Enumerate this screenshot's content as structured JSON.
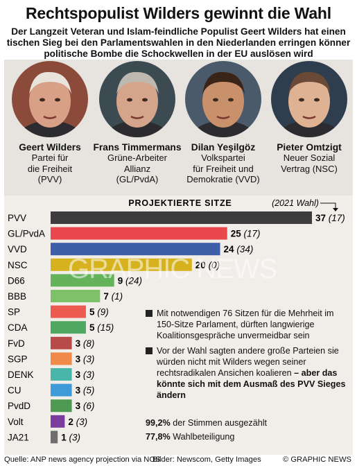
{
  "header": {
    "title": "Rechtspopulist Wilders gewinnt die Wahl",
    "subtitle_lines": [
      "Der Langzeit Veteran und Islam-feindliche Populist Geert Wilders hat einen",
      "tischen Sieg bei den Parlamentswahlen in den Niederlanden erringen könner",
      "politische Bombe die Schockwellen in der EU auslösen wird"
    ]
  },
  "candidates": [
    {
      "name": "Geert Wilders",
      "party_lines": [
        "Partei für",
        "die Freiheit",
        "(PVV)"
      ],
      "photo_bg": "#8b4a3a",
      "skin": "#d9a088",
      "hair": "#e8e4dc",
      "icon": "portrait-photo"
    },
    {
      "name": "Frans Timmermans",
      "party_lines": [
        "Grüne-Arbeiter",
        "Allianz",
        "(GL/PvdA)"
      ],
      "photo_bg": "#3c4a52",
      "skin": "#d4a58a",
      "hair": "#bdb8b0",
      "icon": "portrait-photo"
    },
    {
      "name": "Dilan Yeşilgöz",
      "party_lines": [
        "Volkspartei",
        "für Freiheit und",
        "Demokratie (VVD)"
      ],
      "photo_bg": "#4a5a6a",
      "skin": "#c9906c",
      "hair": "#3a2418",
      "icon": "portrait-photo"
    },
    {
      "name": "Pieter Omtzigt",
      "party_lines": [
        "Neuer Sozial",
        "Vertrag (NSC)"
      ],
      "photo_bg": "#2f3e4e",
      "skin": "#e0b294",
      "hair": "#6a4a36",
      "icon": "portrait-photo"
    }
  ],
  "chart_data": {
    "type": "bar",
    "title": "PROJEKTIERTE SITZE",
    "legend_note": "(2021 Wahl)",
    "orientation": "horizontal",
    "xlim": [
      0,
      37
    ],
    "categories": [
      "PVV",
      "GL/PvdA",
      "VVD",
      "NSC",
      "D66",
      "BBB",
      "SP",
      "CDA",
      "FvD",
      "SGP",
      "DENK",
      "CU",
      "PvdD",
      "Volt",
      "JA21"
    ],
    "series": [
      {
        "name": "",
        "values": [
          37,
          25,
          24,
          20,
          9,
          7,
          5,
          5,
          3,
          3,
          3,
          3,
          3,
          2,
          1
        ]
      },
      {
        "name": "(2021 Wahl)",
        "values": [
          17,
          17,
          34,
          0,
          24,
          1,
          9,
          15,
          8,
          3,
          3,
          5,
          6,
          3,
          3
        ]
      }
    ],
    "colors": [
      "#3d3d3d",
      "#e8474c",
      "#3f5ea8",
      "#d6b21f",
      "#64b25a",
      "#7dc268",
      "#ec5a50",
      "#4fa860",
      "#b84a4a",
      "#f08a4b",
      "#48b6a8",
      "#3f9ad8",
      "#4f9a52",
      "#7a3d9e",
      "#6e6e6e"
    ],
    "value_labels": [
      "37",
      "25",
      "24",
      "20",
      "9",
      "7",
      "5",
      "5",
      "3",
      "3",
      "3",
      "3",
      "3",
      "2",
      "1"
    ],
    "prev_labels": [
      "(17)",
      "(17)",
      "(34)",
      "(0)",
      "(24)",
      "(1)",
      "(9)",
      "(15)",
      "(8)",
      "(3)",
      "(3)",
      "(5)",
      "(6)",
      "(3)",
      "(3)"
    ]
  },
  "notes": {
    "note1": "Mit notwendigen 76 Sitzen für die Mehrheit im 150-Sitze Parlament, dürften langwierige Koalitionsgespräche unvermeidbar sein",
    "note2": "Vor der Wahl sagten andere große Parteien sie würden nicht mit Wilders wegen seiner rechtsradikalen Ansichen koalieren",
    "note2_emph": "– aber das könnte sich mit dem Ausmaß des PVV Sieges ändern"
  },
  "stats": {
    "votes_value": "99,2%",
    "votes_label": "der Stimmen ausgezählt",
    "turnout_value": "77,8%",
    "turnout_label": "Wahlbeteiligung"
  },
  "watermark": "GRAPHIC NEWS",
  "footer": {
    "source": "Quelle: ANP news agency projection via NOS",
    "images": "Bilder: Newscom, Getty Images",
    "copyright": "© GRAPHIC NEWS"
  }
}
